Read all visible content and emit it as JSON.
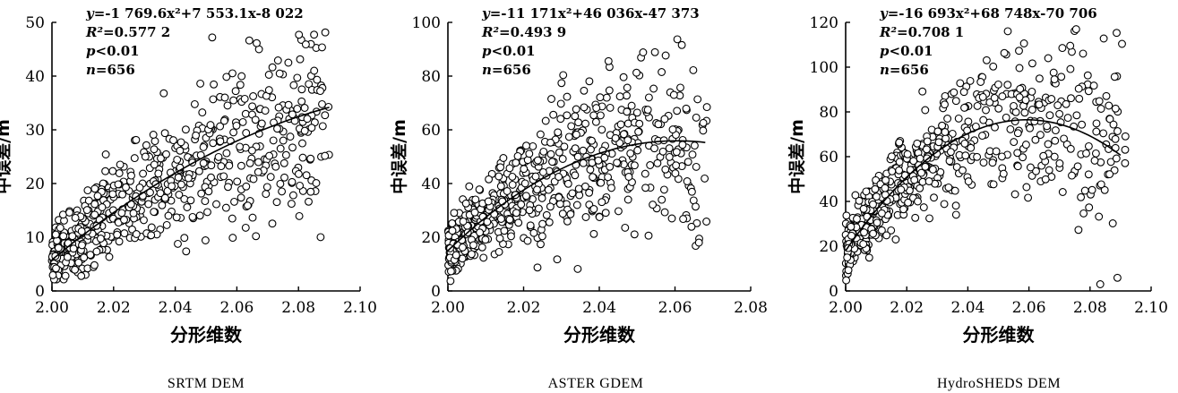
{
  "chart_data": [
    {
      "type": "scatter",
      "caption": "SRTM DEM",
      "xlabel": "分形维数",
      "ylabel": "中误差/m",
      "xlim": [
        2.0,
        2.1
      ],
      "ylim": [
        0,
        50
      ],
      "xticks": [
        "2.00",
        "2.02",
        "2.04",
        "2.06",
        "2.08",
        "2.10"
      ],
      "yticks": [
        "0",
        "10",
        "20",
        "30",
        "40",
        "50"
      ],
      "fit": {
        "a": -1769.6,
        "b": 7553.1,
        "c": -8022,
        "x_range": [
          2.0,
          2.09
        ]
      },
      "annotations": [
        {
          "y_text": "y",
          "eq": "=-1 769.6x²+7 553.1x-8 022"
        },
        {
          "y_text": "R²",
          "eq": "=0.577 2"
        },
        {
          "y_text": "p",
          "eq": "<0.01"
        },
        {
          "y_text": "n",
          "eq": "=656"
        }
      ],
      "n_points": 656,
      "seed": 11
    },
    {
      "type": "scatter",
      "caption": "ASTER GDEM",
      "xlabel": "分形维数",
      "ylabel": "中误差/m",
      "xlim": [
        2.0,
        2.08
      ],
      "ylim": [
        0,
        100
      ],
      "xticks": [
        "2.00",
        "2.02",
        "2.04",
        "2.06",
        "2.08"
      ],
      "yticks": [
        "0",
        "20",
        "40",
        "60",
        "80",
        "100"
      ],
      "fit": {
        "a": -11171,
        "b": 46036,
        "c": -47373,
        "x_range": [
          2.0,
          2.068
        ]
      },
      "annotations": [
        {
          "y_text": "y",
          "eq": "=-11 171x²+46 036x-47 373"
        },
        {
          "y_text": "R²",
          "eq": "=0.493 9"
        },
        {
          "y_text": "p",
          "eq": "<0.01"
        },
        {
          "y_text": "n",
          "eq": "=656"
        }
      ],
      "n_points": 656,
      "seed": 29
    },
    {
      "type": "scatter",
      "caption": "HydroSHEDS DEM",
      "xlabel": "分形维数",
      "ylabel": "中误差/m",
      "xlim": [
        2.0,
        2.1
      ],
      "ylim": [
        0,
        120
      ],
      "xticks": [
        "2.00",
        "2.02",
        "2.04",
        "2.06",
        "2.08",
        "2.10"
      ],
      "yticks": [
        "0",
        "20",
        "40",
        "60",
        "80",
        "100",
        "120"
      ],
      "fit": {
        "a": -16693,
        "b": 68748,
        "c": -70706,
        "x_range": [
          2.0,
          2.09
        ]
      },
      "annotations": [
        {
          "y_text": "y",
          "eq": "=-16 693x²+68 748x-70 706"
        },
        {
          "y_text": "R²",
          "eq": "=0.708 1"
        },
        {
          "y_text": "p",
          "eq": "<0.01"
        },
        {
          "y_text": "n",
          "eq": "=656"
        }
      ],
      "n_points": 656,
      "seed": 47
    }
  ]
}
